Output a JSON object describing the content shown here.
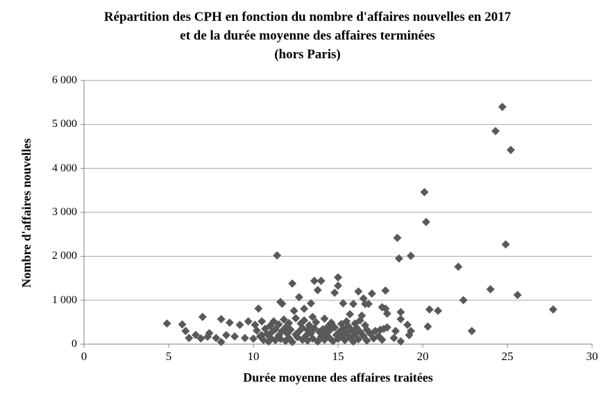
{
  "title": {
    "line1": "Répartition des CPH en fonction du nombre d'affaires nouvelles en 2017",
    "line2": "et de la durée moyenne des affaires terminées",
    "line3": "(hors Paris)"
  },
  "chart_data": {
    "type": "scatter",
    "title": "Répartition des CPH en fonction du nombre d'affaires nouvelles en 2017 et de la durée moyenne des affaires terminées (hors Paris)",
    "xlabel": "Durée moyenne des affaires traitées",
    "ylabel": "Nombre d'affaires nouvelles",
    "xlim": [
      0,
      30
    ],
    "ylim": [
      0,
      6000
    ],
    "xticks": {
      "values": [
        0,
        5,
        10,
        15,
        20,
        25,
        30
      ],
      "labels": [
        "0",
        "5",
        "10",
        "15",
        "20",
        "25",
        "30"
      ]
    },
    "yticks": {
      "values": [
        0,
        1000,
        2000,
        3000,
        4000,
        5000,
        6000
      ],
      "labels": [
        "0",
        "1 000",
        "2 000",
        "3 000",
        "4 000",
        "5 000",
        "6 000"
      ]
    },
    "grid": "horizontal",
    "legend": "none",
    "marker": "diamond",
    "marker_color": "#595959",
    "gridline_color": "#a6a6a6",
    "axis_color": "#808080",
    "points": [
      [
        4.9,
        470
      ],
      [
        5.8,
        450
      ],
      [
        6.0,
        300
      ],
      [
        6.2,
        140
      ],
      [
        6.6,
        210
      ],
      [
        6.9,
        130
      ],
      [
        7.0,
        620
      ],
      [
        7.3,
        170
      ],
      [
        7.4,
        250
      ],
      [
        7.8,
        140
      ],
      [
        8.1,
        570
      ],
      [
        8.1,
        50
      ],
      [
        8.4,
        205
      ],
      [
        8.6,
        490
      ],
      [
        8.9,
        175
      ],
      [
        9.2,
        440
      ],
      [
        9.5,
        140
      ],
      [
        9.7,
        520
      ],
      [
        10.0,
        125
      ],
      [
        10.1,
        440
      ],
      [
        10.2,
        310
      ],
      [
        10.3,
        810
      ],
      [
        10.4,
        180
      ],
      [
        10.5,
        520
      ],
      [
        10.5,
        205
      ],
      [
        10.6,
        95
      ],
      [
        10.7,
        350
      ],
      [
        10.8,
        230
      ],
      [
        10.9,
        60
      ],
      [
        11.0,
        420
      ],
      [
        11.0,
        150
      ],
      [
        11.1,
        280
      ],
      [
        11.2,
        520
      ],
      [
        11.3,
        90
      ],
      [
        11.3,
        340
      ],
      [
        11.4,
        2020
      ],
      [
        11.5,
        200
      ],
      [
        11.5,
        450
      ],
      [
        11.6,
        960
      ],
      [
        11.6,
        120
      ],
      [
        11.7,
        920
      ],
      [
        11.7,
        300
      ],
      [
        11.8,
        560
      ],
      [
        11.9,
        75
      ],
      [
        11.9,
        380
      ],
      [
        12.0,
        240
      ],
      [
        12.1,
        480
      ],
      [
        12.1,
        140
      ],
      [
        12.2,
        330
      ],
      [
        12.3,
        1380
      ],
      [
        12.3,
        50
      ],
      [
        12.4,
        760
      ],
      [
        12.5,
        220
      ],
      [
        12.5,
        590
      ],
      [
        12.6,
        160
      ],
      [
        12.7,
        1070
      ],
      [
        12.7,
        290
      ],
      [
        12.8,
        470
      ],
      [
        12.9,
        100
      ],
      [
        12.9,
        370
      ],
      [
        13.0,
        805
      ],
      [
        13.0,
        540
      ],
      [
        13.1,
        190
      ],
      [
        13.2,
        320
      ],
      [
        13.2,
        80
      ],
      [
        13.3,
        430
      ],
      [
        13.4,
        930
      ],
      [
        13.4,
        250
      ],
      [
        13.5,
        620
      ],
      [
        13.5,
        130
      ],
      [
        13.6,
        1440
      ],
      [
        13.6,
        360
      ],
      [
        13.7,
        500
      ],
      [
        13.8,
        1230
      ],
      [
        13.8,
        60
      ],
      [
        13.9,
        280
      ],
      [
        14.0,
        1440
      ],
      [
        14.0,
        170
      ],
      [
        14.1,
        340
      ],
      [
        14.2,
        100
      ],
      [
        14.2,
        580
      ],
      [
        14.3,
        240
      ],
      [
        14.4,
        400
      ],
      [
        14.5,
        140
      ],
      [
        14.5,
        310
      ],
      [
        14.6,
        490
      ],
      [
        14.7,
        70
      ],
      [
        14.8,
        1170
      ],
      [
        14.8,
        380
      ],
      [
        14.9,
        210
      ],
      [
        15.0,
        1520
      ],
      [
        15.0,
        1330
      ],
      [
        15.0,
        120
      ],
      [
        15.1,
        290
      ],
      [
        15.2,
        460
      ],
      [
        15.2,
        180
      ],
      [
        15.3,
        930
      ],
      [
        15.3,
        350
      ],
      [
        15.4,
        90
      ],
      [
        15.5,
        520
      ],
      [
        15.5,
        250
      ],
      [
        15.6,
        410
      ],
      [
        15.7,
        680
      ],
      [
        15.7,
        150
      ],
      [
        15.8,
        320
      ],
      [
        15.9,
        915
      ],
      [
        15.9,
        60
      ],
      [
        16.0,
        470
      ],
      [
        16.0,
        220
      ],
      [
        16.1,
        370
      ],
      [
        16.2,
        1200
      ],
      [
        16.2,
        110
      ],
      [
        16.3,
        540
      ],
      [
        16.3,
        280
      ],
      [
        16.4,
        650
      ],
      [
        16.5,
        1040
      ],
      [
        16.5,
        190
      ],
      [
        16.6,
        915
      ],
      [
        16.6,
        430
      ],
      [
        16.7,
        80
      ],
      [
        16.7,
        330
      ],
      [
        16.8,
        915
      ],
      [
        16.9,
        240
      ],
      [
        17.0,
        1150
      ],
      [
        17.1,
        130
      ],
      [
        17.2,
        300
      ],
      [
        17.4,
        180
      ],
      [
        17.5,
        330
      ],
      [
        17.6,
        840
      ],
      [
        17.6,
        100
      ],
      [
        17.7,
        350
      ],
      [
        17.8,
        1220
      ],
      [
        17.8,
        810
      ],
      [
        17.9,
        695
      ],
      [
        17.9,
        380
      ],
      [
        18.3,
        140
      ],
      [
        18.4,
        300
      ],
      [
        18.5,
        2420
      ],
      [
        18.6,
        1950
      ],
      [
        18.7,
        730
      ],
      [
        18.7,
        570
      ],
      [
        18.7,
        63
      ],
      [
        19.1,
        440
      ],
      [
        19.2,
        205
      ],
      [
        19.3,
        2010
      ],
      [
        19.3,
        300
      ],
      [
        20.1,
        3460
      ],
      [
        20.2,
        2780
      ],
      [
        20.3,
        400
      ],
      [
        20.4,
        790
      ],
      [
        20.9,
        760
      ],
      [
        22.1,
        1760
      ],
      [
        22.4,
        1000
      ],
      [
        22.9,
        300
      ],
      [
        24.0,
        1250
      ],
      [
        24.3,
        4850
      ],
      [
        24.7,
        5400
      ],
      [
        24.9,
        2270
      ],
      [
        25.2,
        4420
      ],
      [
        25.6,
        1120
      ],
      [
        27.7,
        790
      ]
    ]
  }
}
